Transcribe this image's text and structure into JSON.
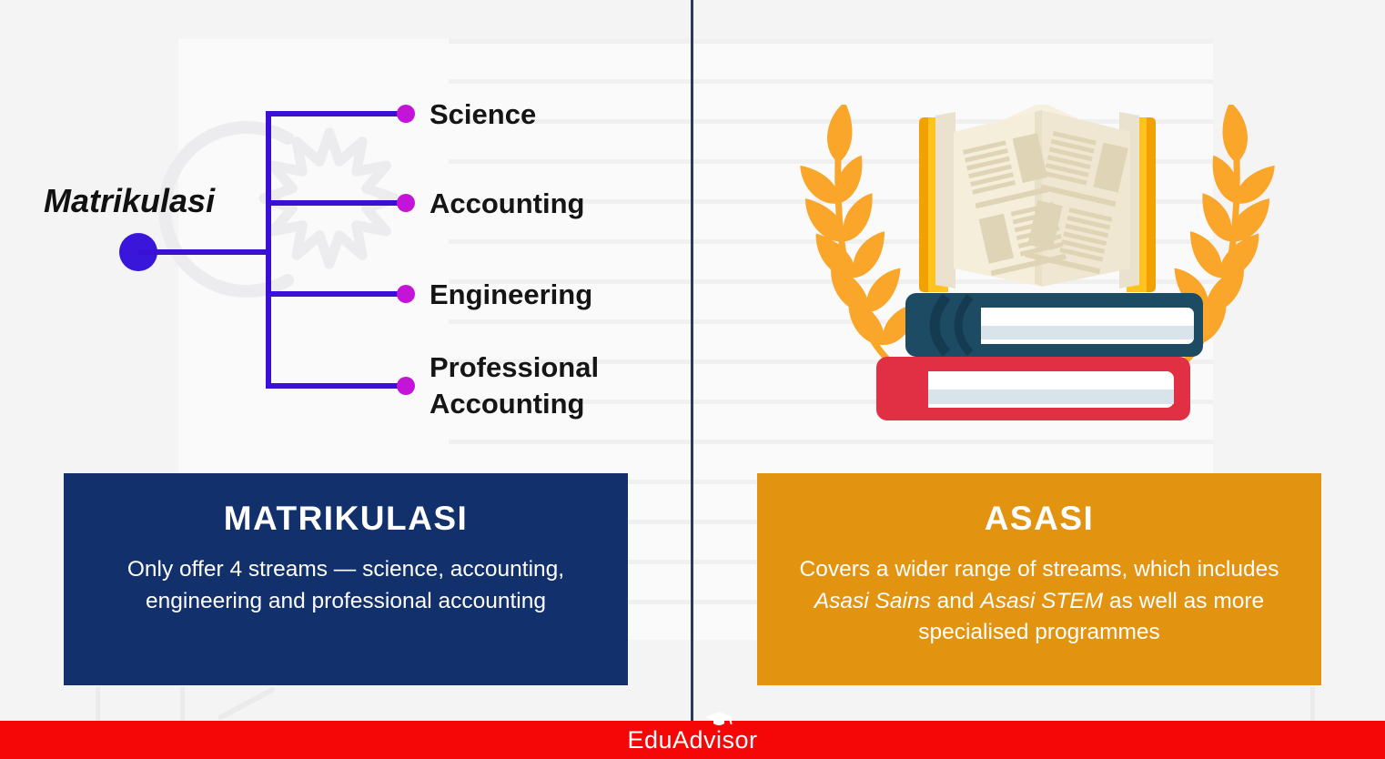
{
  "tree": {
    "root_label": "Matrikulasi",
    "branches": [
      "Science",
      "Accounting",
      "Engineering",
      "Professional Accounting"
    ]
  },
  "cards": {
    "left": {
      "title": "MATRIKULASI",
      "body": "Only offer 4 streams — science, accounting, engineering and professional accounting"
    },
    "right": {
      "title": "ASASI",
      "body_parts": [
        {
          "text": "Covers a wider range of streams, which includes "
        },
        {
          "text": "Asasi Sains",
          "italic": true
        },
        {
          "text": " and "
        },
        {
          "text": "Asasi STEM",
          "italic": true
        },
        {
          "text": " as well as more specialised programmes"
        }
      ]
    }
  },
  "footer": {
    "brand": "EduAdvisor",
    "brand_pre": "EduAdv",
    "brand_i": "i",
    "brand_post": "sor"
  },
  "icons": {
    "root_node": "tree-root-dot",
    "branch_node": "tree-branch-dot",
    "illustration": "open-book-on-stack-with-laurels",
    "footer_logo_icon": "graduation-cap-icon",
    "watermark": "crescent-and-star-watermark"
  },
  "colors": {
    "background": "#f4f4f4",
    "tree_line": "#3a10d4",
    "root_dot": "#3a16da",
    "branch_dot": "#c414d8",
    "card_navy": "#12306b",
    "card_orange": "#e2930f",
    "divider_navy": "#2b3a5c",
    "footer_red": "#f50707",
    "laurel_gold": "#f9a62b",
    "book_yellow": "#ffc21e",
    "book_teal": "#1d4b63",
    "book_red": "#e12f44",
    "page_cream": "#f5eedb"
  }
}
